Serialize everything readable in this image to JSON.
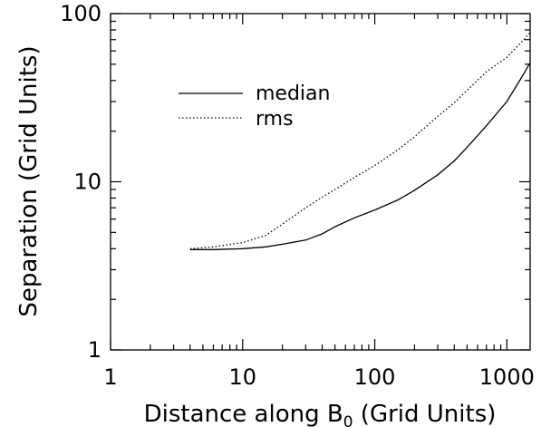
{
  "chart_data": {
    "type": "line",
    "xlabel_main": "Distance along B",
    "xlabel_sub": "0",
    "xlabel_tail": " (Grid Units)",
    "ylabel": "Separation (Grid Units)",
    "x_scale": "log",
    "y_scale": "log",
    "xlim": [
      1,
      1500
    ],
    "ylim": [
      1,
      100
    ],
    "grid": false,
    "legend_position": "top-left",
    "x_ticks": [
      {
        "value": 1,
        "label": "1"
      },
      {
        "value": 10,
        "label": "10"
      },
      {
        "value": 100,
        "label": "100"
      },
      {
        "value": 1000,
        "label": "1000"
      }
    ],
    "y_ticks": [
      {
        "value": 1,
        "label": "1"
      },
      {
        "value": 10,
        "label": "10"
      },
      {
        "value": 100,
        "label": "100"
      }
    ],
    "series": [
      {
        "name": "median",
        "style": "solid",
        "color": "#000000",
        "x": [
          4,
          6,
          10,
          15,
          20,
          30,
          40,
          50,
          70,
          100,
          150,
          200,
          300,
          400,
          500,
          700,
          1000,
          1300,
          1500
        ],
        "y": [
          3.95,
          3.95,
          4.0,
          4.1,
          4.25,
          4.5,
          4.9,
          5.4,
          6.1,
          6.8,
          7.8,
          8.9,
          11.0,
          13.3,
          16.0,
          21.5,
          30.0,
          42.0,
          51.0
        ]
      },
      {
        "name": "rms",
        "style": "dotted",
        "color": "#000000",
        "x": [
          4,
          6,
          10,
          15,
          20,
          30,
          40,
          50,
          70,
          100,
          150,
          200,
          300,
          400,
          500,
          700,
          1000,
          1300,
          1500
        ],
        "y": [
          4.0,
          4.1,
          4.35,
          4.8,
          5.6,
          7.0,
          8.1,
          9.0,
          10.6,
          12.5,
          15.5,
          18.5,
          24.5,
          29.5,
          35.0,
          45.0,
          55.0,
          68.0,
          77.0
        ]
      }
    ]
  }
}
